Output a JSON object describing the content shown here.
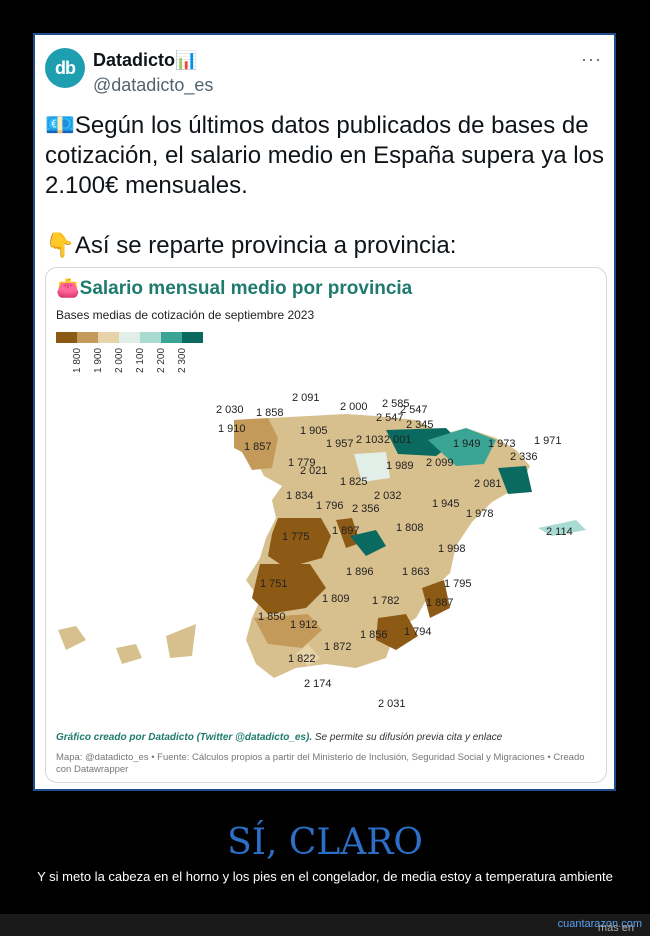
{
  "tweet": {
    "avatar_text": "db",
    "author_name": "Datadicto📊",
    "author_handle": "@datadicto_es",
    "more_icon": "···",
    "line1": "💶Según los últimos datos publicados de bases de cotización, el salario medio en España supera ya los 2.100€ mensuales.",
    "line2": "👇Así se reparte provincia a provincia:"
  },
  "card": {
    "title": "👛Salario mensual medio por provincia",
    "subtitle": "Bases medias de cotización de septiembre 2023",
    "legend_colors": [
      "#8c5a14",
      "#c39a5a",
      "#e6d3a8",
      "#e2efe8",
      "#a9dbd3",
      "#3aa495",
      "#0b6a5f"
    ],
    "legend_ticks": [
      "1 800",
      "1 900",
      "2 000",
      "2 100",
      "2 200",
      "2 300"
    ],
    "credit_bold": "Gráfico creado por Datadicto (Twitter @datadicto_es).",
    "credit_rest": " Se permite su difusión previa cita y enlace",
    "source": "Mapa: @datadicto_es • Fuente: Cálculos propios a partir del Ministerio de Inclusión, Seguridad Social y Migraciones • Creado con Datawrapper"
  },
  "map_values": [
    "2 091",
    "2 030",
    "1 858",
    "1 910",
    "2 000",
    "2 585",
    "2 547",
    "2 547",
    "1 905",
    "2 345",
    "1 857",
    "1 957",
    "2 103",
    "2 001",
    "1 949",
    "1 973",
    "1 971",
    "1 779",
    "2 021",
    "1 989",
    "2 099",
    "2 336",
    "1 825",
    "2 081",
    "1 834",
    "2 032",
    "1 796",
    "1 945",
    "2 356",
    "1 978",
    "2 114",
    "1 775",
    "1 897",
    "1 808",
    "1 998",
    "1 896",
    "1 863",
    "1 751",
    "1 795",
    "1 809",
    "1 782",
    "1 887",
    "1 850",
    "1 912",
    "1 856",
    "1 794",
    "1 872",
    "1 822",
    "2 174",
    "2 031"
  ],
  "headline": "SÍ, CLARO",
  "caption": "Y si meto la cabeza en el horno y los pies en el congelador, de media estoy a temperatura ambiente",
  "footer": {
    "prefix": "más en ",
    "site": "cuantarazon.com"
  }
}
